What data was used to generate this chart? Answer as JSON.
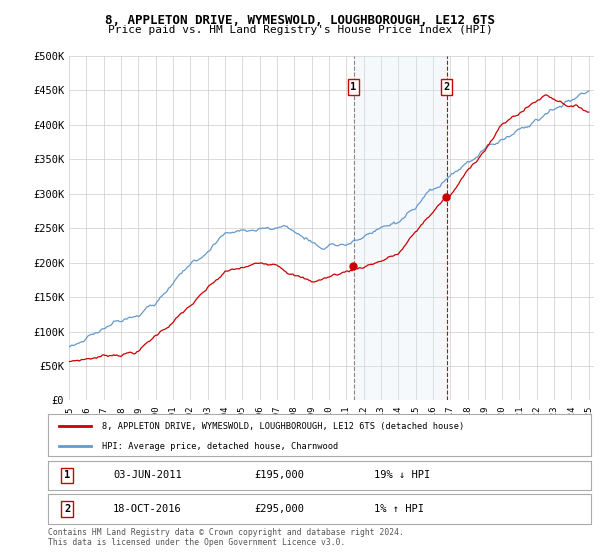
{
  "title_line1": "8, APPLETON DRIVE, WYMESWOLD, LOUGHBOROUGH, LE12 6TS",
  "title_line2": "Price paid vs. HM Land Registry's House Price Index (HPI)",
  "ylabel_ticks": [
    "£0",
    "£50K",
    "£100K",
    "£150K",
    "£200K",
    "£250K",
    "£300K",
    "£350K",
    "£400K",
    "£450K",
    "£500K"
  ],
  "ytick_values": [
    0,
    50000,
    100000,
    150000,
    200000,
    250000,
    300000,
    350000,
    400000,
    450000,
    500000
  ],
  "x_start_year": 1995,
  "x_end_year": 2025,
  "transaction1_date": "03-JUN-2011",
  "transaction1_price": 195000,
  "transaction1_pct": "19% ↓ HPI",
  "transaction1_x": 2011.42,
  "transaction2_date": "18-OCT-2016",
  "transaction2_price": 295000,
  "transaction2_x": 2016.79,
  "transaction2_pct": "1% ↑ HPI",
  "legend_line1": "8, APPLETON DRIVE, WYMESWOLD, LOUGHBOROUGH, LE12 6TS (detached house)",
  "legend_line2": "HPI: Average price, detached house, Charnwood",
  "footnote": "Contains HM Land Registry data © Crown copyright and database right 2024.\nThis data is licensed under the Open Government Licence v3.0.",
  "line_color_red": "#cc0000",
  "line_color_blue": "#6699cc",
  "shade_color": "#d8e8f5",
  "background_color": "#ffffff",
  "grid_color": "#cccccc"
}
